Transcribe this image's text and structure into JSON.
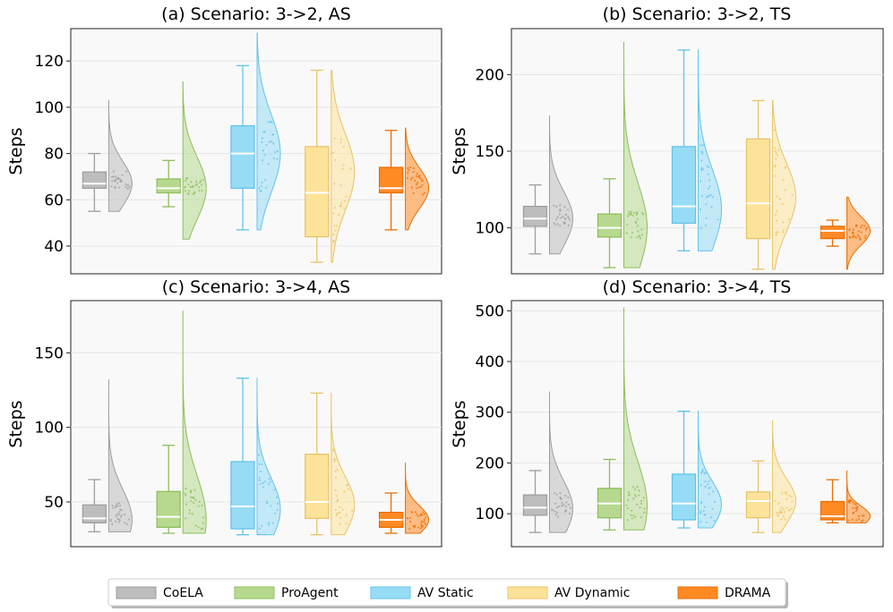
{
  "legend": {
    "entries": [
      {
        "name": "CoELA",
        "color": "#bdbdbd",
        "edge": "#9e9e9e"
      },
      {
        "name": "ProAgent",
        "color": "#b7d98f",
        "edge": "#8cbf5a"
      },
      {
        "name": "AV Static",
        "color": "#97dcf5",
        "edge": "#63c3ea"
      },
      {
        "name": "AV Dynamic",
        "color": "#fde39a",
        "edge": "#e8c46a"
      },
      {
        "name": "DRAMA",
        "color": "#ff8a24",
        "edge": "#e86e05"
      }
    ]
  },
  "chart_data": [
    {
      "type": "box-violin",
      "title": "(a) Scenario: 3->2, AS",
      "ylabel": "Steps",
      "ylim": [
        28,
        134
      ],
      "yticks": [
        40,
        60,
        80,
        100,
        120
      ],
      "series": [
        {
          "name": "CoELA",
          "whisker_low": 55,
          "q1": 65,
          "median": 67,
          "q3": 72,
          "whisker_high": 80,
          "min": 55,
          "max": 103,
          "mode": 67
        },
        {
          "name": "ProAgent",
          "whisker_low": 57,
          "q1": 63,
          "median": 65,
          "q3": 69,
          "whisker_high": 77,
          "min": 43,
          "max": 111,
          "mode": 65
        },
        {
          "name": "AV Static",
          "whisker_low": 47,
          "q1": 65,
          "median": 80,
          "q3": 92,
          "whisker_high": 118,
          "min": 47,
          "max": 132,
          "mode": 80
        },
        {
          "name": "AV Dynamic",
          "whisker_low": 33,
          "q1": 44,
          "median": 63,
          "q3": 83,
          "whisker_high": 116,
          "min": 33,
          "max": 116,
          "mode": 72
        },
        {
          "name": "DRAMA",
          "whisker_low": 47,
          "q1": 63,
          "median": 65,
          "q3": 74,
          "whisker_high": 90,
          "min": 47,
          "max": 91,
          "mode": 65
        }
      ]
    },
    {
      "type": "box-violin",
      "title": "(b) Scenario: 3->2, TS",
      "ylabel": "Steps",
      "ylim": [
        70,
        230
      ],
      "yticks": [
        100,
        150,
        200
      ],
      "series": [
        {
          "name": "CoELA",
          "whisker_low": 83,
          "q1": 101,
          "median": 106,
          "q3": 114,
          "whisker_high": 128,
          "min": 83,
          "max": 173,
          "mode": 106
        },
        {
          "name": "ProAgent",
          "whisker_low": 74,
          "q1": 94,
          "median": 100,
          "q3": 109,
          "whisker_high": 132,
          "min": 74,
          "max": 221,
          "mode": 100
        },
        {
          "name": "AV Static",
          "whisker_low": 85,
          "q1": 103,
          "median": 114,
          "q3": 153,
          "whisker_high": 216,
          "min": 85,
          "max": 216,
          "mode": 112
        },
        {
          "name": "AV Dynamic",
          "whisker_low": 73,
          "q1": 93,
          "median": 116,
          "q3": 158,
          "whisker_high": 183,
          "min": 73,
          "max": 183,
          "mode": 120
        },
        {
          "name": "DRAMA",
          "whisker_low": 88,
          "q1": 93,
          "median": 98,
          "q3": 101,
          "whisker_high": 105,
          "min": 73,
          "max": 120,
          "mode": 98
        }
      ]
    },
    {
      "type": "box-violin",
      "title": "(c) Scenario: 3->4, AS",
      "ylabel": "Steps",
      "ylim": [
        20,
        185
      ],
      "yticks": [
        50,
        100,
        150
      ],
      "series": [
        {
          "name": "CoELA",
          "whisker_low": 30,
          "q1": 36,
          "median": 39,
          "q3": 48,
          "whisker_high": 65,
          "min": 30,
          "max": 132,
          "mode": 38
        },
        {
          "name": "ProAgent",
          "whisker_low": 29,
          "q1": 33,
          "median": 40,
          "q3": 57,
          "whisker_high": 88,
          "min": 29,
          "max": 178,
          "mode": 38
        },
        {
          "name": "AV Static",
          "whisker_low": 28,
          "q1": 32,
          "median": 47,
          "q3": 77,
          "whisker_high": 133,
          "min": 28,
          "max": 133,
          "mode": 45
        },
        {
          "name": "AV Dynamic",
          "whisker_low": 28,
          "q1": 39,
          "median": 50,
          "q3": 82,
          "whisker_high": 123,
          "min": 28,
          "max": 123,
          "mode": 48
        },
        {
          "name": "DRAMA",
          "whisker_low": 29,
          "q1": 33,
          "median": 38,
          "q3": 43,
          "whisker_high": 56,
          "min": 29,
          "max": 76,
          "mode": 38
        }
      ]
    },
    {
      "type": "box-violin",
      "title": "(d) Scenario: 3->4, TS",
      "ylabel": "Steps",
      "ylim": [
        35,
        520
      ],
      "yticks": [
        100,
        200,
        300,
        400,
        500
      ],
      "series": [
        {
          "name": "CoELA",
          "whisker_low": 63,
          "q1": 97,
          "median": 112,
          "q3": 137,
          "whisker_high": 185,
          "min": 63,
          "max": 340,
          "mode": 110
        },
        {
          "name": "ProAgent",
          "whisker_low": 68,
          "q1": 92,
          "median": 120,
          "q3": 150,
          "whisker_high": 207,
          "min": 68,
          "max": 506,
          "mode": 115
        },
        {
          "name": "AV Static",
          "whisker_low": 72,
          "q1": 88,
          "median": 120,
          "q3": 178,
          "whisker_high": 302,
          "min": 72,
          "max": 302,
          "mode": 118
        },
        {
          "name": "AV Dynamic",
          "whisker_low": 63,
          "q1": 92,
          "median": 125,
          "q3": 143,
          "whisker_high": 204,
          "min": 63,
          "max": 283,
          "mode": 125
        },
        {
          "name": "DRAMA",
          "whisker_low": 82,
          "q1": 88,
          "median": 95,
          "q3": 124,
          "whisker_high": 167,
          "min": 82,
          "max": 184,
          "mode": 95
        }
      ]
    }
  ]
}
